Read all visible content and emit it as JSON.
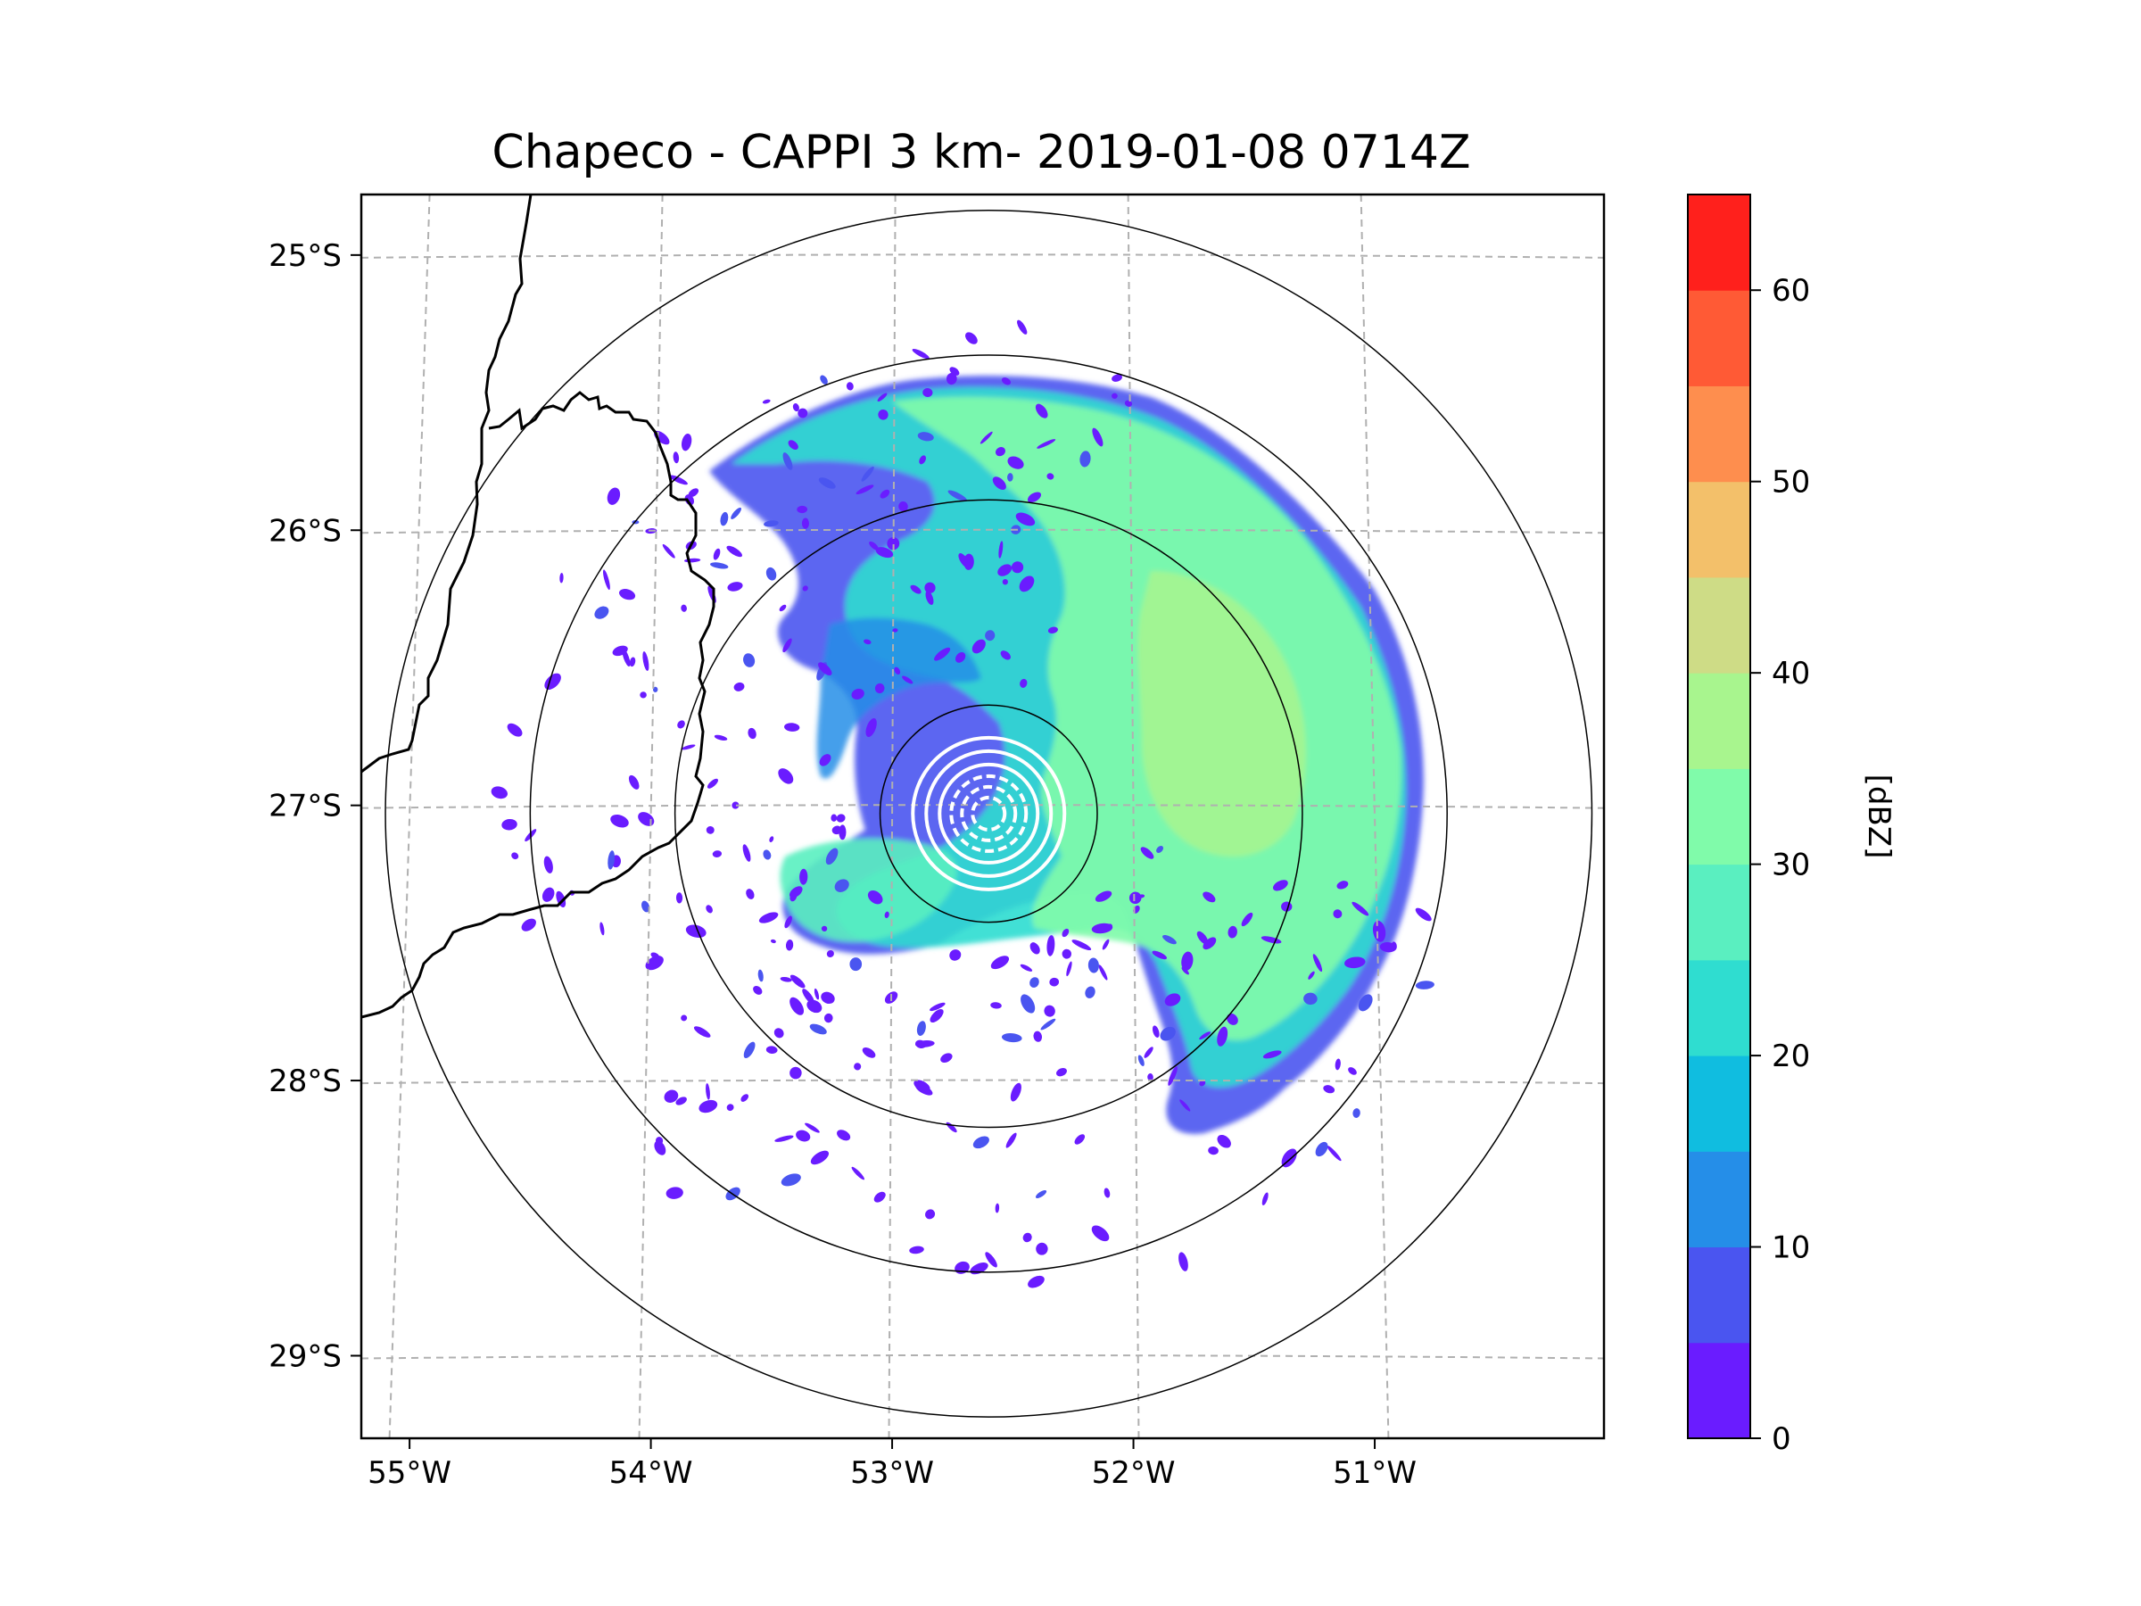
{
  "title": "Chapeco - CAPPI 3 km- 2019-01-08 0714Z",
  "map": {
    "lon_range": [
      -55.2,
      -50.05
    ],
    "lat_range": [
      -29.3,
      -24.78
    ],
    "lat_ticks": [
      {
        "value": -25,
        "label": "25°S"
      },
      {
        "value": -26,
        "label": "26°S"
      },
      {
        "value": -27,
        "label": "27°S"
      },
      {
        "value": -28,
        "label": "28°S"
      },
      {
        "value": -29,
        "label": "29°S"
      }
    ],
    "lon_ticks": [
      {
        "value": -55,
        "label": "55°W"
      },
      {
        "value": -54,
        "label": "54°W"
      },
      {
        "value": -53,
        "label": "53°W"
      },
      {
        "value": -52,
        "label": "52°W"
      },
      {
        "value": -51,
        "label": "51°W"
      }
    ],
    "radar_site": {
      "name": "Chapeco",
      "lon": -52.6,
      "lat": -27.03
    },
    "range_rings_deg": [
      0.45,
      1.3,
      1.9,
      2.5
    ]
  },
  "colorbar": {
    "label": "[dBZ]",
    "min": 0,
    "max": 65,
    "ticks": [
      0,
      10,
      20,
      30,
      40,
      50,
      60
    ],
    "levels": [
      0,
      5,
      10,
      15,
      20,
      25,
      30,
      35,
      40,
      45,
      50,
      55,
      60,
      65
    ],
    "colors": [
      "#6a1cff",
      "#4a55f0",
      "#258ee8",
      "#10bde0",
      "#2fddd0",
      "#5aefc0",
      "#80fbaa",
      "#a8f58e",
      "#cedc86",
      "#f3c06a",
      "#fe8e4e",
      "#ff5a35",
      "#ff201c"
    ]
  }
}
